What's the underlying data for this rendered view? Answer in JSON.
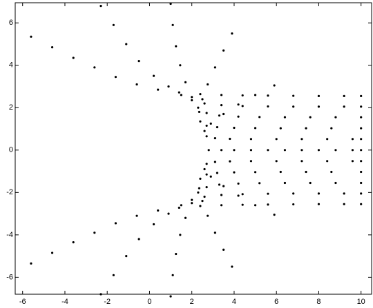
{
  "chart_data": {
    "type": "scatter",
    "color": "#000000",
    "xlim": [
      -6.35,
      10.5
    ],
    "ylim": [
      -6.8,
      6.95
    ],
    "xticks": [
      -6,
      -4,
      -2,
      0,
      2,
      4,
      6,
      8,
      10
    ],
    "yticks": [
      -6,
      -4,
      -2,
      0,
      2,
      4,
      6
    ],
    "series": [
      {
        "x": [
          -5.6,
          -4.6,
          -3.6,
          -2.6,
          -1.6,
          -0.6,
          0.4,
          1.4,
          2.4,
          3.4,
          4.4,
          5.6,
          6.8,
          8.0,
          9.2,
          10
        ],
        "values": [
          5.35,
          4.85,
          4.35,
          3.9,
          3.45,
          3.1,
          2.85,
          2.72,
          2.64,
          2.6,
          2.58,
          2.57,
          2.56,
          2.55,
          2.55,
          2.55
        ]
      },
      {
        "x": [
          -2.3,
          -1.7,
          -1.1,
          -0.5,
          0.2,
          0.9,
          1.5,
          2.0,
          2.6,
          3.4,
          4.4,
          5.6,
          6.8,
          8.0,
          9.2,
          10
        ],
        "values": [
          6.8,
          5.9,
          5.0,
          4.2,
          3.5,
          3.0,
          2.6,
          2.35,
          2.2,
          2.12,
          2.08,
          2.06,
          2.05,
          2.05,
          2.05,
          2.05
        ]
      },
      {
        "x": [
          1.0,
          1.1,
          1.25,
          1.45,
          1.7,
          2.0,
          2.3,
          2.7,
          3.3,
          4.2,
          5.2,
          6.4,
          7.6,
          8.8,
          10
        ],
        "values": [
          6.9,
          5.9,
          4.9,
          4.0,
          3.2,
          2.5,
          2.0,
          1.75,
          1.63,
          1.58,
          1.56,
          1.55,
          1.55,
          1.55,
          1.55
        ]
      },
      {
        "x": [
          3.9,
          3.5,
          3.1,
          2.75,
          2.5,
          2.35,
          2.4,
          2.7,
          3.2,
          4.0,
          5.0,
          6.2,
          7.4,
          8.6,
          10
        ],
        "values": [
          5.5,
          4.7,
          3.9,
          3.1,
          2.4,
          1.8,
          1.35,
          1.15,
          1.08,
          1.05,
          1.04,
          1.03,
          1.03,
          1.03,
          1.03
        ]
      },
      {
        "x": [
          5.9,
          5.0,
          4.2,
          3.5,
          2.9,
          2.6,
          2.7,
          3.1,
          3.8,
          4.8,
          6.0,
          7.2,
          8.4,
          9.6,
          10
        ],
        "values": [
          3.05,
          2.6,
          2.15,
          1.7,
          1.25,
          0.9,
          0.65,
          0.56,
          0.53,
          0.52,
          0.52,
          0.52,
          0.52,
          0.52,
          0.52
        ]
      },
      {
        "x": [
          2.8,
          3.4,
          4.0,
          4.8,
          5.6,
          6.4,
          7.2,
          8.0,
          8.8,
          9.6,
          10
        ],
        "values": [
          0,
          0,
          0,
          0,
          0,
          0,
          0,
          0,
          0,
          0,
          0
        ]
      },
      {
        "x": [
          5.9,
          5.0,
          4.2,
          3.5,
          2.9,
          2.6,
          2.7,
          3.1,
          3.8,
          4.8,
          6.0,
          7.2,
          8.4,
          9.6,
          10
        ],
        "values": [
          -3.05,
          -2.6,
          -2.15,
          -1.7,
          -1.25,
          -0.9,
          -0.65,
          -0.56,
          -0.53,
          -0.52,
          -0.52,
          -0.52,
          -0.52,
          -0.52,
          -0.52
        ]
      },
      {
        "x": [
          3.9,
          3.5,
          3.1,
          2.75,
          2.5,
          2.35,
          2.4,
          2.7,
          3.2,
          4.0,
          5.0,
          6.2,
          7.4,
          8.6,
          10
        ],
        "values": [
          -5.5,
          -4.7,
          -3.9,
          -3.1,
          -2.4,
          -1.8,
          -1.35,
          -1.15,
          -1.08,
          -1.05,
          -1.04,
          -1.03,
          -1.03,
          -1.03,
          -1.03
        ]
      },
      {
        "x": [
          1.0,
          1.1,
          1.25,
          1.45,
          1.7,
          2.0,
          2.3,
          2.7,
          3.3,
          4.2,
          5.2,
          6.4,
          7.6,
          8.8,
          10
        ],
        "values": [
          -6.9,
          -5.9,
          -4.9,
          -4.0,
          -3.2,
          -2.5,
          -2.0,
          -1.75,
          -1.63,
          -1.58,
          -1.56,
          -1.55,
          -1.55,
          -1.55,
          -1.55
        ]
      },
      {
        "x": [
          -2.3,
          -1.7,
          -1.1,
          -0.5,
          0.2,
          0.9,
          1.5,
          2.0,
          2.6,
          3.4,
          4.4,
          5.6,
          6.8,
          8.0,
          9.2,
          10
        ],
        "values": [
          -6.8,
          -5.9,
          -5.0,
          -4.2,
          -3.5,
          -3.0,
          -2.6,
          -2.35,
          -2.2,
          -2.12,
          -2.08,
          -2.06,
          -2.05,
          -2.05,
          -2.05,
          -2.05
        ]
      },
      {
        "x": [
          -5.6,
          -4.6,
          -3.6,
          -2.6,
          -1.6,
          -0.6,
          0.4,
          1.4,
          2.4,
          3.4,
          4.4,
          5.6,
          6.8,
          8.0,
          9.2,
          10
        ],
        "values": [
          -5.35,
          -4.85,
          -4.35,
          -3.9,
          -3.45,
          -3.1,
          -2.85,
          -2.72,
          -2.64,
          -2.6,
          -2.58,
          -2.57,
          -2.56,
          -2.55,
          -2.55,
          -2.55
        ]
      }
    ]
  }
}
